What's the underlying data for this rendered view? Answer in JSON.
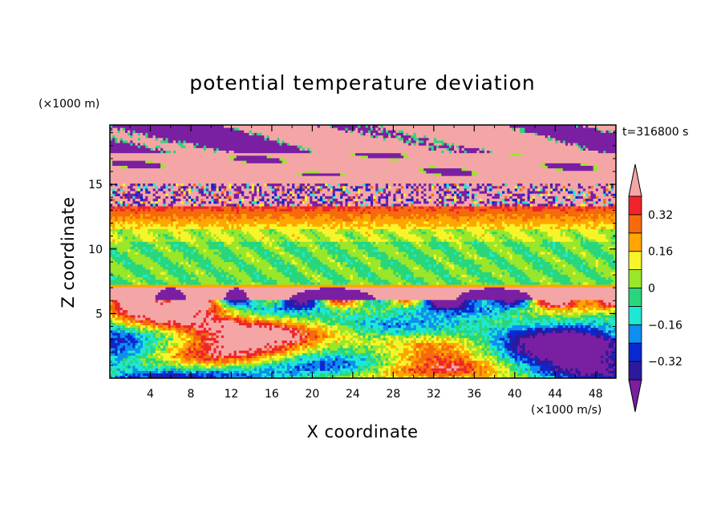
{
  "chart_data": {
    "type": "heatmap",
    "title": "potential temperature deviation",
    "xlabel": "X coordinate",
    "ylabel": "Z coordinate",
    "x_unit": "(×1000 m/s)",
    "y_unit": "(×1000 m)",
    "time_label": "t=316800 s",
    "xlim": [
      0,
      50
    ],
    "ylim": [
      0,
      19.6
    ],
    "x_ticks": [
      4,
      8,
      12,
      16,
      20,
      24,
      28,
      32,
      36,
      40,
      44,
      48
    ],
    "y_ticks": [
      5,
      10,
      15
    ],
    "colorbar": {
      "levels": [
        -0.4,
        -0.32,
        -0.24,
        -0.16,
        -0.08,
        0,
        0.08,
        0.16,
        0.24,
        0.32,
        0.4
      ],
      "tick_values": [
        -0.32,
        -0.16,
        0,
        0.16,
        0.32
      ],
      "tick_labels": [
        "−0.32",
        "−0.16",
        "0",
        "0.16",
        "0.32"
      ],
      "colors": [
        "#7a1fa2",
        "#2b1a9c",
        "#0a28d2",
        "#0e8ef0",
        "#1ee8d4",
        "#2ad67a",
        "#9ae62a",
        "#f7f52a",
        "#ffa600",
        "#f66a0c",
        "#f0242a",
        "#f4a6a6"
      ]
    },
    "layers": [
      {
        "z_range": [
          17.5,
          19.6
        ],
        "pattern": "mixed pink and purple, noisy"
      },
      {
        "z_range": [
          15.0,
          17.5
        ],
        "pattern": "pink band with purple streaks"
      },
      {
        "z_range": [
          13.3,
          15.0
        ],
        "pattern": "speckled purple/blue/cyan/yellow"
      },
      {
        "z_range": [
          11.5,
          13.3
        ],
        "pattern": "orange-yellow band"
      },
      {
        "z_range": [
          7.2,
          11.5
        ],
        "pattern": "green band"
      },
      {
        "z_range": [
          6.0,
          7.2
        ],
        "pattern": "pink band with purple domes"
      },
      {
        "z_range": [
          0,
          6.0
        ],
        "pattern": "turbulent eddies, mixed colors"
      }
    ]
  }
}
